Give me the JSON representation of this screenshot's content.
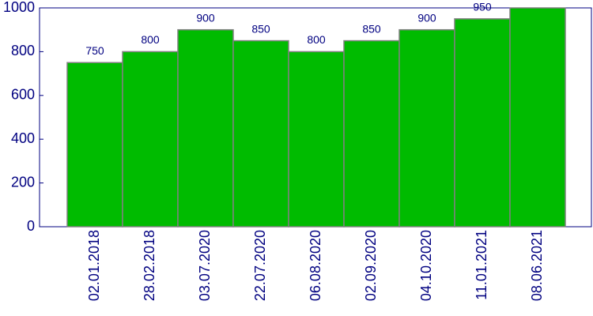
{
  "chart_data": {
    "type": "bar",
    "categories": [
      "02.01.2018",
      "28.02.2018",
      "03.07.2020",
      "22.07.2020",
      "06.08.2020",
      "02.09.2020",
      "04.10.2020",
      "11.01.2021",
      "08.06.2021"
    ],
    "values": [
      750,
      800,
      900,
      850,
      800,
      850,
      900,
      950,
      1000
    ],
    "color": "#00bb00",
    "ylim": [
      0,
      1000
    ],
    "yticks": [
      0,
      200,
      400,
      600,
      800,
      1000
    ],
    "grid": false
  }
}
